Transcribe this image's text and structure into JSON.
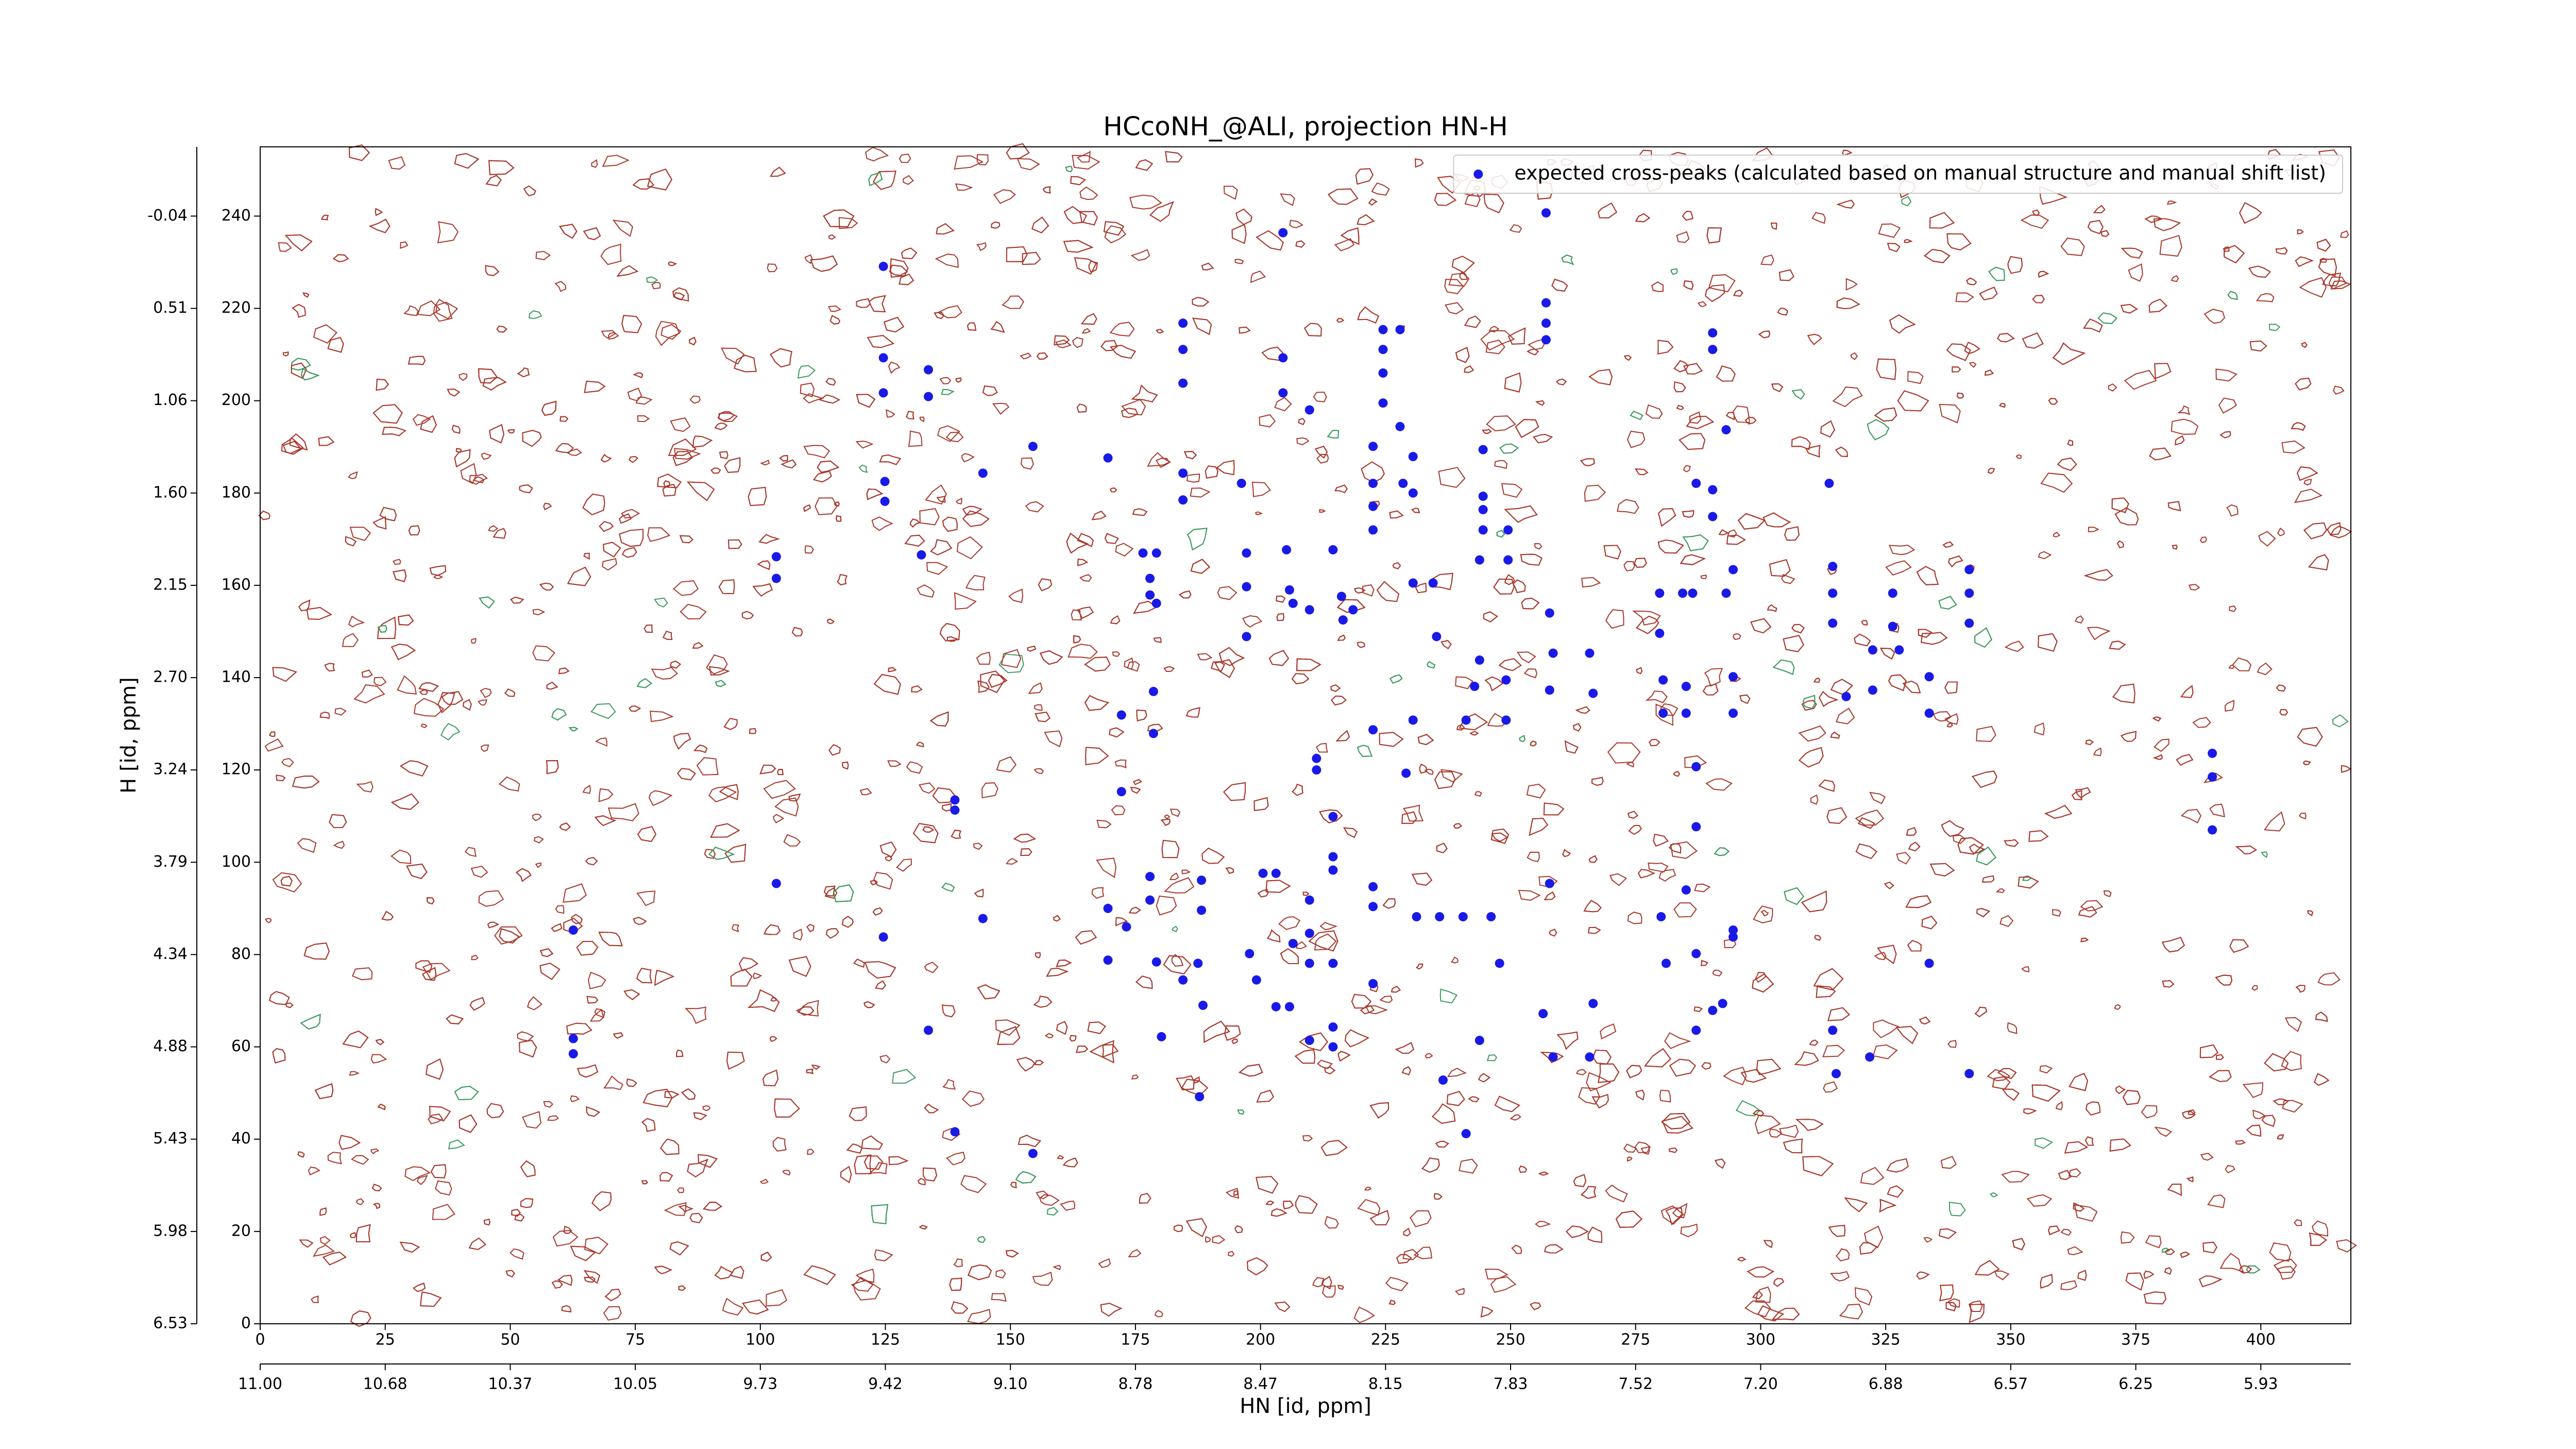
{
  "chart_data": {
    "type": "scatter",
    "title": "HCcoNH_@ALI, projection HN-H",
    "xlabel": "HN [id, ppm]",
    "ylabel": "H [id, ppm]",
    "xlim": [
      0,
      418
    ],
    "ylim": [
      0,
      255
    ],
    "xticks": [
      0,
      25,
      50,
      75,
      100,
      125,
      150,
      175,
      200,
      225,
      250,
      275,
      300,
      325,
      350,
      375,
      400
    ],
    "yticks": [
      0,
      20,
      40,
      60,
      80,
      100,
      120,
      140,
      160,
      180,
      200,
      220,
      240
    ],
    "x2ticks": [
      {
        "value": 0,
        "label": "11.00"
      },
      {
        "value": 25,
        "label": "10.68"
      },
      {
        "value": 50,
        "label": "10.37"
      },
      {
        "value": 75,
        "label": "10.05"
      },
      {
        "value": 100,
        "label": "9.73"
      },
      {
        "value": 125,
        "label": "9.42"
      },
      {
        "value": 150,
        "label": "9.10"
      },
      {
        "value": 175,
        "label": "8.78"
      },
      {
        "value": 200,
        "label": "8.47"
      },
      {
        "value": 225,
        "label": "8.15"
      },
      {
        "value": 250,
        "label": "7.83"
      },
      {
        "value": 275,
        "label": "7.52"
      },
      {
        "value": 300,
        "label": "7.20"
      },
      {
        "value": 325,
        "label": "6.88"
      },
      {
        "value": 350,
        "label": "6.57"
      },
      {
        "value": 375,
        "label": "6.25"
      },
      {
        "value": 400,
        "label": "5.93"
      }
    ],
    "y2ticks": [
      {
        "value": 0,
        "label": "6.53"
      },
      {
        "value": 20,
        "label": "5.98"
      },
      {
        "value": 40,
        "label": "5.43"
      },
      {
        "value": 60,
        "label": "4.88"
      },
      {
        "value": 80,
        "label": "4.34"
      },
      {
        "value": 100,
        "label": "3.79"
      },
      {
        "value": 120,
        "label": "3.24"
      },
      {
        "value": 140,
        "label": "2.70"
      },
      {
        "value": 160,
        "label": "2.15"
      },
      {
        "value": 180,
        "label": "1.60"
      },
      {
        "value": 200,
        "label": "1.06"
      },
      {
        "value": 220,
        "label": "0.51"
      },
      {
        "value": 240,
        "label": "-0.04"
      }
    ],
    "legend": "upper right",
    "series": [
      {
        "name": "expected cross-peaks (calculated based on manual structure and manual shift list)",
        "color": "#1a1ae6",
        "x": [
          62.6,
          62.6,
          62.6,
          124.6,
          124.6,
          124.6,
          124.9,
          124.9,
          133.6,
          133.6,
          132.2,
          103.2,
          103.2,
          103.2,
          138.9,
          138.9,
          138.9,
          124.6,
          133.6,
          144.5,
          144.5,
          154.5,
          154.5,
          169.5,
          169.5,
          169.5,
          172.2,
          172.2,
          173.2,
          176.5,
          179.2,
          177.9,
          177.9,
          179.2,
          178.6,
          178.6,
          177.9,
          177.9,
          179.2,
          180.2,
          184.5,
          184.5,
          184.5,
          184.5,
          184.5,
          184.5,
          187.5,
          188.2,
          188.2,
          187.8,
          188.5,
          196.2,
          197.2,
          197.2,
          197.2,
          197.8,
          199.2,
          200.5,
          203.1,
          204.5,
          204.5,
          204.5,
          205.2,
          205.8,
          206.5,
          209.8,
          209.8,
          211.2,
          211.2,
          214.5,
          214.5,
          216.2,
          216.5,
          218.5,
          214.5,
          214.5,
          209.8,
          209.8,
          206.5,
          209.8,
          214.5,
          214.5,
          205.8,
          203.1,
          209.8,
          214.5,
          222.5,
          222.5,
          222.5,
          222.5,
          222.5,
          222.5,
          222.5,
          222.5,
          224.5,
          224.5,
          224.5,
          224.5,
          227.9,
          227.9,
          228.5,
          230.5,
          230.5,
          230.5,
          230.5,
          229.1,
          231.2,
          234.5,
          235.2,
          235.8,
          236.5,
          240.5,
          241.1,
          241.1,
          242.8,
          243.8,
          243.8,
          244.5,
          244.5,
          244.5,
          244.5,
          246.1,
          243.8,
          249.5,
          249.5,
          249.1,
          249.1,
          247.8,
          257.1,
          257.1,
          257.1,
          257.1,
          257.8,
          258.5,
          257.8,
          256.5,
          258.5,
          257.8,
          265.8,
          266.5,
          266.5,
          265.8,
          279.8,
          279.8,
          280.5,
          280.5,
          280.1,
          281.1,
          284.4,
          285.1,
          285.1,
          285.1,
          287.1,
          287.1,
          287.1,
          287.1,
          287.1,
          286.4,
          290.4,
          290.4,
          290.4,
          290.4,
          290.4,
          292.4,
          293.1,
          293.1,
          294.5,
          294.5,
          294.5,
          294.5,
          294.5,
          313.7,
          314.4,
          314.4,
          314.4,
          314.4,
          315.1,
          317.1,
          321.8,
          322.4,
          322.4,
          326.4,
          326.4,
          327.7,
          333.7,
          333.7,
          333.7,
          341.7,
          341.7,
          341.7,
          341.7,
          390.3,
          390.3,
          390.3
        ],
        "y": [
          85.3,
          61.8,
          58.5,
          229.1,
          209.3,
          201.7,
          182.5,
          178.2,
          206.7,
          200.9,
          166.6,
          166.2,
          161.5,
          95.4,
          113.5,
          111.3,
          41.6,
          83.8,
          63.6,
          184.3,
          87.8,
          190.1,
          36.9,
          187.6,
          90.0,
          78.8,
          131.9,
          115.3,
          86.0,
          167.0,
          167.0,
          161.5,
          157.9,
          156.1,
          137.0,
          127.9,
          96.9,
          91.8,
          78.4,
          62.2,
          216.8,
          211.1,
          203.8,
          184.3,
          178.5,
          74.5,
          78.1,
          96.1,
          89.6,
          49.2,
          69.0,
          182.1,
          167.0,
          159.7,
          148.9,
          80.2,
          74.5,
          97.6,
          97.6,
          209.3,
          201.7,
          236.4,
          167.7,
          159.0,
          156.1,
          198.0,
          154.7,
          122.5,
          120.0,
          109.9,
          167.7,
          157.6,
          152.5,
          154.7,
          98.3,
          101.2,
          91.8,
          84.6,
          82.4,
          78.1,
          78.1,
          60.0,
          68.7,
          68.7,
          61.4,
          64.3,
          73.7,
          94.7,
          90.4,
          128.7,
          190.1,
          182.1,
          177.1,
          172.0,
          215.4,
          211.1,
          206.0,
          199.5,
          215.4,
          194.4,
          182.1,
          187.9,
          180.0,
          160.5,
          130.8,
          119.3,
          88.2,
          160.5,
          148.9,
          88.2,
          52.8,
          88.2,
          41.2,
          130.8,
          138.1,
          143.8,
          165.5,
          189.4,
          179.3,
          176.4,
          172.0,
          88.2,
          61.4,
          172.0,
          165.5,
          139.5,
          130.8,
          78.1,
          240.7,
          221.2,
          216.8,
          213.2,
          154.0,
          145.3,
          137.3,
          67.2,
          57.8,
          95.4,
          145.3,
          136.6,
          69.4,
          57.8,
          158.3,
          149.6,
          139.5,
          132.3,
          88.2,
          78.1,
          158.3,
          138.1,
          132.3,
          94.0,
          182.1,
          120.7,
          107.7,
          80.2,
          63.6,
          158.3,
          214.7,
          211.1,
          180.7,
          174.9,
          67.9,
          69.4,
          193.7,
          158.3,
          163.4,
          140.2,
          132.3,
          85.3,
          83.8,
          182.1,
          164.1,
          158.3,
          151.8,
          63.6,
          54.2,
          135.9,
          57.8,
          146.0,
          137.3,
          158.3,
          151.1,
          146.0,
          140.2,
          132.3,
          78.1,
          163.4,
          158.3,
          151.8,
          54.2,
          123.6,
          118.5,
          107.0
        ]
      }
    ]
  }
}
